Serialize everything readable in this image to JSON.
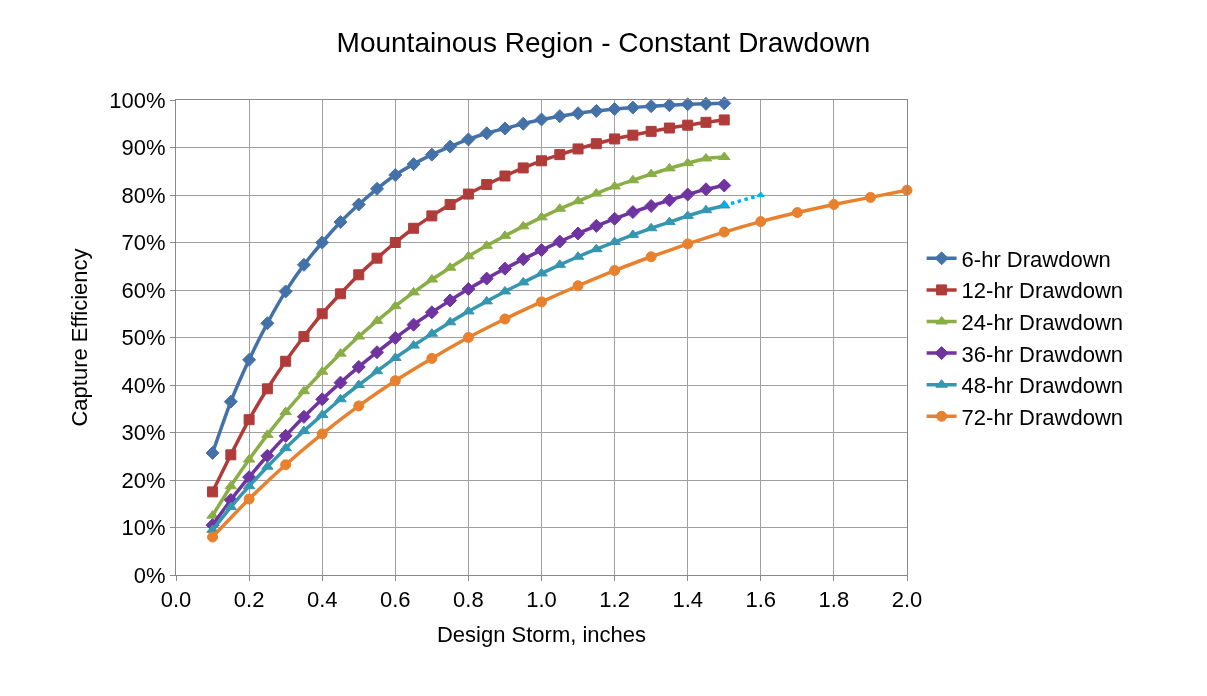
{
  "chart_data": {
    "type": "line",
    "title": "Mountainous Region - Constant Drawdown",
    "xlabel": "Design Storm, inches",
    "ylabel": "Capture Efficiency",
    "x": [
      0.1,
      0.15,
      0.2,
      0.25,
      0.3,
      0.35,
      0.4,
      0.45,
      0.5,
      0.55,
      0.6,
      0.65,
      0.7,
      0.75,
      0.8,
      0.85,
      0.9,
      0.95,
      1.0,
      1.05,
      1.1,
      1.15,
      1.2,
      1.25,
      1.3,
      1.35,
      1.4,
      1.45,
      1.5
    ],
    "series": [
      {
        "name": "6-hr Drawdown",
        "color": "#4472a8",
        "marker": "diamond",
        "values": [
          25.7,
          36.5,
          45.3,
          53,
          59.7,
          65.3,
          70,
          74.3,
          78,
          81.3,
          84.2,
          86.5,
          88.5,
          90.2,
          91.7,
          93,
          94,
          95,
          95.9,
          96.6,
          97.2,
          97.7,
          98.1,
          98.4,
          98.7,
          98.9,
          99.1,
          99.2,
          99.3
        ]
      },
      {
        "name": "12-hr Drawdown",
        "color": "#b03c3a",
        "marker": "square",
        "values": [
          17.5,
          25.3,
          32.7,
          39.2,
          45,
          50.2,
          55,
          59.2,
          63.2,
          66.7,
          70,
          73,
          75.6,
          78,
          80.2,
          82.2,
          84,
          85.7,
          87.2,
          88.5,
          89.7,
          90.8,
          91.8,
          92.6,
          93.4,
          94.1,
          94.7,
          95.3,
          95.8
        ]
      },
      {
        "name": "24-hr Drawdown",
        "color": "#8aae46",
        "marker": "triangle",
        "values": [
          12.5,
          18.7,
          24.3,
          29.5,
          34.3,
          38.7,
          42.8,
          46.6,
          50.2,
          53.5,
          56.6,
          59.5,
          62.2,
          64.7,
          67.1,
          69.3,
          71.4,
          73.4,
          75.3,
          77.1,
          78.7,
          80.3,
          81.8,
          83.1,
          84.4,
          85.6,
          86.7,
          87.7,
          88
        ]
      },
      {
        "name": "36-hr Drawdown",
        "color": "#7034a0",
        "marker": "diamond",
        "values": [
          10.5,
          15.8,
          20.6,
          25.1,
          29.3,
          33.3,
          37,
          40.5,
          43.8,
          46.9,
          49.9,
          52.7,
          55.3,
          57.8,
          60.2,
          62.4,
          64.5,
          66.5,
          68.4,
          70.2,
          71.9,
          73.5,
          75,
          76.4,
          77.7,
          78.9,
          80.1,
          81.2,
          82
        ]
      },
      {
        "name": "48-hr Drawdown",
        "color": "#3596b0",
        "marker": "triangle",
        "values": [
          9.5,
          14.3,
          18.7,
          22.8,
          26.7,
          30.3,
          33.7,
          37,
          40,
          42.9,
          45.7,
          48.3,
          50.8,
          53.2,
          55.5,
          57.6,
          59.7,
          61.6,
          63.5,
          65.3,
          67,
          68.6,
          70.1,
          71.6,
          73,
          74.3,
          75.6,
          76.8,
          77.8
        ]
      },
      {
        "color": "#00b0f0",
        "marker": "triangle",
        "line_style": "dotted",
        "x": [
          1.5,
          1.6
        ],
        "values": [
          77.8,
          80
        ]
      },
      {
        "name": "72-hr Drawdown",
        "color": "#e8812e",
        "marker": "circle",
        "x": [
          0.1,
          0.2,
          0.3,
          0.4,
          0.5,
          0.6,
          0.7,
          0.8,
          0.9,
          1.0,
          1.1,
          1.2,
          1.3,
          1.4,
          1.5,
          1.6,
          1.7,
          1.8,
          1.9,
          2.0
        ],
        "values": [
          8,
          16,
          23.2,
          29.7,
          35.6,
          40.9,
          45.6,
          50,
          53.9,
          57.5,
          60.9,
          64.1,
          67,
          69.7,
          72.2,
          74.4,
          76.3,
          78,
          79.5,
          81
        ]
      }
    ],
    "xlim": [
      0,
      2.0
    ],
    "xticks": [
      {
        "value": 0,
        "label": "0.0"
      },
      {
        "value": 0.2,
        "label": "0.2"
      },
      {
        "value": 0.4,
        "label": "0.4"
      },
      {
        "value": 0.6,
        "label": "0.6"
      },
      {
        "value": 0.8,
        "label": "0.8"
      },
      {
        "value": 1.0,
        "label": "1.0"
      },
      {
        "value": 1.2,
        "label": "1.2"
      },
      {
        "value": 1.4,
        "label": "1.4"
      },
      {
        "value": 1.6,
        "label": "1.6"
      },
      {
        "value": 1.8,
        "label": "1.8"
      },
      {
        "value": 2.0,
        "label": "2.0"
      }
    ],
    "ylim": [
      0,
      100
    ],
    "yticks": [
      {
        "value": 0,
        "label": "0%"
      },
      {
        "value": 10,
        "label": "10%"
      },
      {
        "value": 20,
        "label": "20%"
      },
      {
        "value": 30,
        "label": "30%"
      },
      {
        "value": 40,
        "label": "40%"
      },
      {
        "value": 50,
        "label": "50%"
      },
      {
        "value": 60,
        "label": "60%"
      },
      {
        "value": 70,
        "label": "70%"
      },
      {
        "value": 80,
        "label": "80%"
      },
      {
        "value": 90,
        "label": "90%"
      },
      {
        "value": 100,
        "label": "100%"
      }
    ],
    "grid": true,
    "legend": "right",
    "line_style": "solid"
  }
}
